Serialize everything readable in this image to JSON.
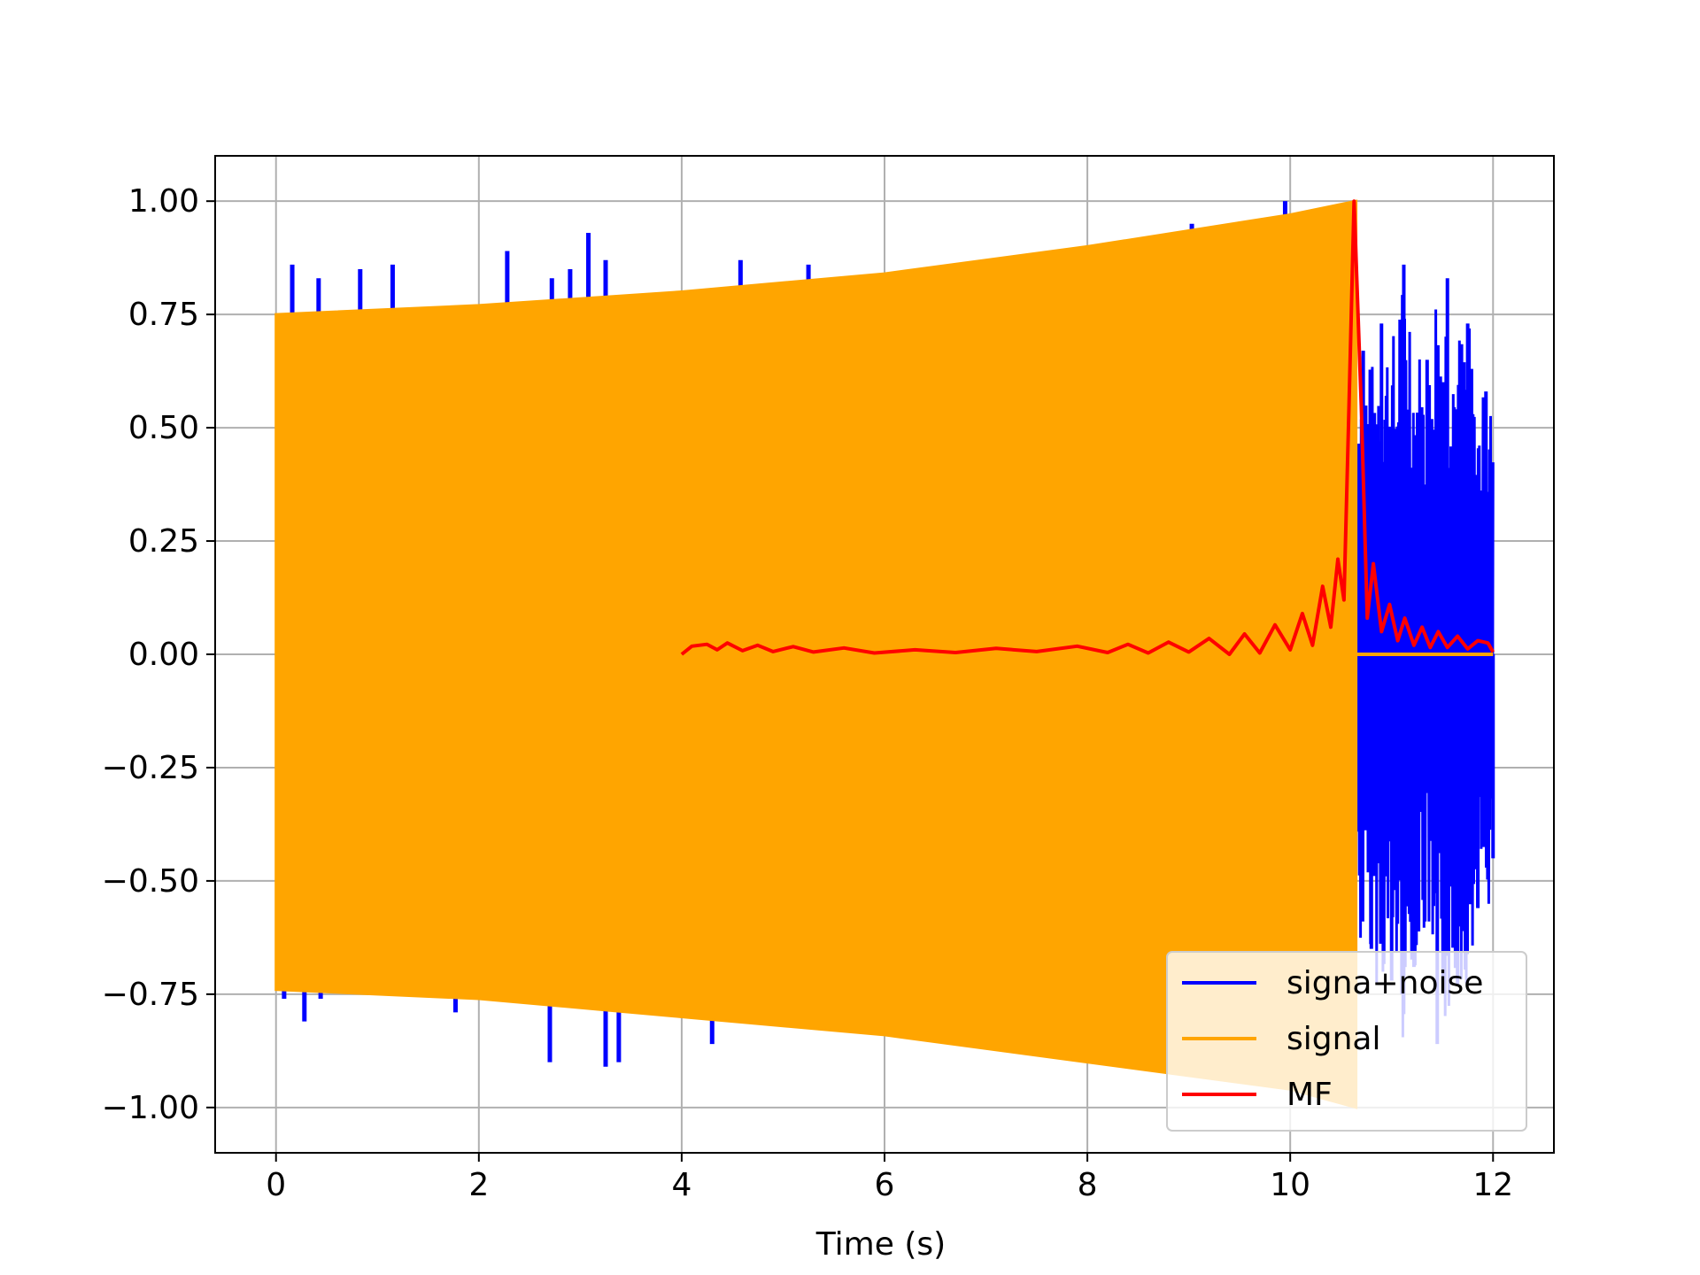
{
  "chart_data": {
    "type": "line",
    "xlabel": "Time (s)",
    "ylabel": "",
    "xlim": [
      -0.6,
      12.6
    ],
    "ylim": [
      -1.1,
      1.1
    ],
    "xticks": [
      0,
      2,
      4,
      6,
      8,
      10,
      12
    ],
    "xtick_labels": [
      "0",
      "2",
      "4",
      "6",
      "8",
      "10",
      "12"
    ],
    "yticks": [
      1.0,
      0.75,
      0.5,
      0.25,
      0.0,
      -0.25,
      -0.5,
      -0.75,
      -1.0
    ],
    "ytick_labels": [
      "1.00",
      "0.75",
      "0.50",
      "0.25",
      "0.00",
      "−0.25",
      "−0.50",
      "−0.75",
      "−1.00"
    ],
    "grid": true,
    "legend_position": "bottom-right",
    "series": [
      {
        "name": "signa+noise",
        "color": "#0000ff",
        "description": "signal plus noise; chirp 0-10.65 s, noise only 10.65-12 s",
        "spikes": [
          {
            "x": 0.16,
            "y": 0.86
          },
          {
            "x": 0.42,
            "y": 0.83
          },
          {
            "x": 0.83,
            "y": 0.85
          },
          {
            "x": 1.15,
            "y": 0.86
          },
          {
            "x": 2.28,
            "y": 0.89
          },
          {
            "x": 2.72,
            "y": 0.83
          },
          {
            "x": 2.9,
            "y": 0.85
          },
          {
            "x": 3.08,
            "y": 0.93
          },
          {
            "x": 3.25,
            "y": 0.87
          },
          {
            "x": 4.58,
            "y": 0.87
          },
          {
            "x": 5.25,
            "y": 0.86
          },
          {
            "x": 9.03,
            "y": 0.95
          },
          {
            "x": 9.95,
            "y": 1.0
          },
          {
            "x": 0.08,
            "y": -0.76
          },
          {
            "x": 0.28,
            "y": -0.81
          },
          {
            "x": 0.44,
            "y": -0.76
          },
          {
            "x": 1.77,
            "y": -0.79
          },
          {
            "x": 2.7,
            "y": -0.9
          },
          {
            "x": 3.25,
            "y": -0.91
          },
          {
            "x": 3.38,
            "y": -0.9
          },
          {
            "x": 4.3,
            "y": -0.86
          },
          {
            "x": 8.35,
            "y": -0.91
          }
        ],
        "noise_region": {
          "x_start": 10.65,
          "x_end": 12.0,
          "peaks": [
            {
              "x": 10.72,
              "y": 0.67
            },
            {
              "x": 10.8,
              "y": -0.65
            },
            {
              "x": 10.9,
              "y": 0.73
            },
            {
              "x": 11.0,
              "y": -0.72
            },
            {
              "x": 11.12,
              "y": 0.86
            },
            {
              "x": 11.22,
              "y": -0.69
            },
            {
              "x": 11.35,
              "y": 0.65
            },
            {
              "x": 11.45,
              "y": -0.86
            },
            {
              "x": 11.55,
              "y": 0.83
            },
            {
              "x": 11.65,
              "y": -0.73
            },
            {
              "x": 11.75,
              "y": 0.73
            },
            {
              "x": 11.85,
              "y": -0.56
            },
            {
              "x": 11.93,
              "y": 0.58
            },
            {
              "x": 12.0,
              "y": -0.45
            }
          ]
        }
      },
      {
        "name": "signal",
        "color": "#ffa500",
        "description": "chirp with growing amplitude from 0 to 10.65 s, zero after",
        "x_start": 0.0,
        "x_end": 10.65,
        "envelope": [
          {
            "x": 0.0,
            "upper": 0.75,
            "lower": -0.74
          },
          {
            "x": 2.0,
            "upper": 0.77,
            "lower": -0.76
          },
          {
            "x": 4.0,
            "upper": 0.8,
            "lower": -0.8
          },
          {
            "x": 6.0,
            "upper": 0.84,
            "lower": -0.84
          },
          {
            "x": 8.0,
            "upper": 0.9,
            "lower": -0.9
          },
          {
            "x": 10.0,
            "upper": 0.97,
            "lower": -0.96
          },
          {
            "x": 10.65,
            "upper": 1.0,
            "lower": -1.0
          }
        ],
        "zero_after": [
          10.65,
          12.0
        ]
      },
      {
        "name": "MF",
        "color": "#ff0000",
        "description": "matched filter output, peak 1.0 at 10.65 s",
        "x_start": 4.0,
        "x_end": 12.0,
        "points": [
          {
            "x": 4.0,
            "y": 0.0
          },
          {
            "x": 4.1,
            "y": 0.018
          },
          {
            "x": 4.25,
            "y": 0.022
          },
          {
            "x": 4.35,
            "y": 0.01
          },
          {
            "x": 4.45,
            "y": 0.025
          },
          {
            "x": 4.6,
            "y": 0.008
          },
          {
            "x": 4.75,
            "y": 0.02
          },
          {
            "x": 4.9,
            "y": 0.006
          },
          {
            "x": 5.1,
            "y": 0.017
          },
          {
            "x": 5.3,
            "y": 0.005
          },
          {
            "x": 5.6,
            "y": 0.014
          },
          {
            "x": 5.9,
            "y": 0.003
          },
          {
            "x": 6.3,
            "y": 0.01
          },
          {
            "x": 6.7,
            "y": 0.004
          },
          {
            "x": 7.1,
            "y": 0.013
          },
          {
            "x": 7.5,
            "y": 0.006
          },
          {
            "x": 7.9,
            "y": 0.018
          },
          {
            "x": 8.2,
            "y": 0.004
          },
          {
            "x": 8.4,
            "y": 0.022
          },
          {
            "x": 8.6,
            "y": 0.003
          },
          {
            "x": 8.8,
            "y": 0.027
          },
          {
            "x": 9.0,
            "y": 0.005
          },
          {
            "x": 9.2,
            "y": 0.035
          },
          {
            "x": 9.4,
            "y": 0.0
          },
          {
            "x": 9.55,
            "y": 0.045
          },
          {
            "x": 9.7,
            "y": 0.003
          },
          {
            "x": 9.85,
            "y": 0.065
          },
          {
            "x": 10.0,
            "y": 0.01
          },
          {
            "x": 10.12,
            "y": 0.09
          },
          {
            "x": 10.22,
            "y": 0.02
          },
          {
            "x": 10.32,
            "y": 0.15
          },
          {
            "x": 10.4,
            "y": 0.06
          },
          {
            "x": 10.47,
            "y": 0.21
          },
          {
            "x": 10.53,
            "y": 0.12
          },
          {
            "x": 10.58,
            "y": 0.55
          },
          {
            "x": 10.63,
            "y": 1.0
          },
          {
            "x": 10.7,
            "y": 0.55
          },
          {
            "x": 10.76,
            "y": 0.08
          },
          {
            "x": 10.82,
            "y": 0.2
          },
          {
            "x": 10.9,
            "y": 0.05
          },
          {
            "x": 10.98,
            "y": 0.11
          },
          {
            "x": 11.06,
            "y": 0.03
          },
          {
            "x": 11.13,
            "y": 0.08
          },
          {
            "x": 11.22,
            "y": 0.02
          },
          {
            "x": 11.3,
            "y": 0.06
          },
          {
            "x": 11.38,
            "y": 0.015
          },
          {
            "x": 11.46,
            "y": 0.05
          },
          {
            "x": 11.55,
            "y": 0.015
          },
          {
            "x": 11.65,
            "y": 0.04
          },
          {
            "x": 11.75,
            "y": 0.012
          },
          {
            "x": 11.85,
            "y": 0.03
          },
          {
            "x": 11.95,
            "y": 0.025
          },
          {
            "x": 12.0,
            "y": 0.005
          }
        ]
      }
    ]
  }
}
